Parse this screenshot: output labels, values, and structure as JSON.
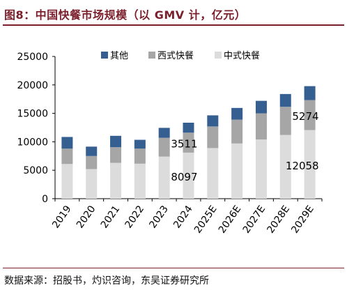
{
  "figure": {
    "title": "图8：中国快餐市场规模（以 GMV 计，亿元）",
    "source": "数据来源：招股书，灼识咨询，东吴证券研究所"
  },
  "colors": {
    "title": "#7a1f2b",
    "other": "#365f91",
    "western": "#a6a6a6",
    "chinese": "#dcdcdc"
  },
  "chart_data": {
    "type": "bar",
    "stacked": true,
    "categories": [
      "2019",
      "2020",
      "2021",
      "2022",
      "2023",
      "2024",
      "2025E",
      "2026E",
      "2027E",
      "2028E",
      "2029E"
    ],
    "series": [
      {
        "name": "中式快餐",
        "color": "#dcdcdc",
        "values": [
          6100,
          5200,
          6300,
          6150,
          7400,
          8097,
          8900,
          9700,
          10400,
          11200,
          12058
        ]
      },
      {
        "name": "西式快餐",
        "color": "#a6a6a6",
        "values": [
          2700,
          2300,
          2750,
          2650,
          3300,
          3511,
          3800,
          4200,
          4600,
          4950,
          5274
        ]
      },
      {
        "name": "其他",
        "color": "#365f91",
        "values": [
          2050,
          1650,
          2000,
          1550,
          1750,
          1750,
          1950,
          2050,
          2200,
          2250,
          2450
        ]
      }
    ],
    "data_labels": [
      {
        "text": "8097",
        "category": "2024",
        "series": "中式快餐"
      },
      {
        "text": "3511",
        "category": "2024",
        "series": "西式快餐"
      },
      {
        "text": "12058",
        "category": "2029E",
        "series": "中式快餐"
      },
      {
        "text": "5274",
        "category": "2029E",
        "series": "西式快餐"
      }
    ],
    "y_ticks": [
      0,
      5000,
      10000,
      15000,
      20000,
      25000
    ],
    "ylim": [
      0,
      25000
    ],
    "legend_order": [
      "其他",
      "西式快餐",
      "中式快餐"
    ],
    "legend_position": "top",
    "grid": false
  }
}
